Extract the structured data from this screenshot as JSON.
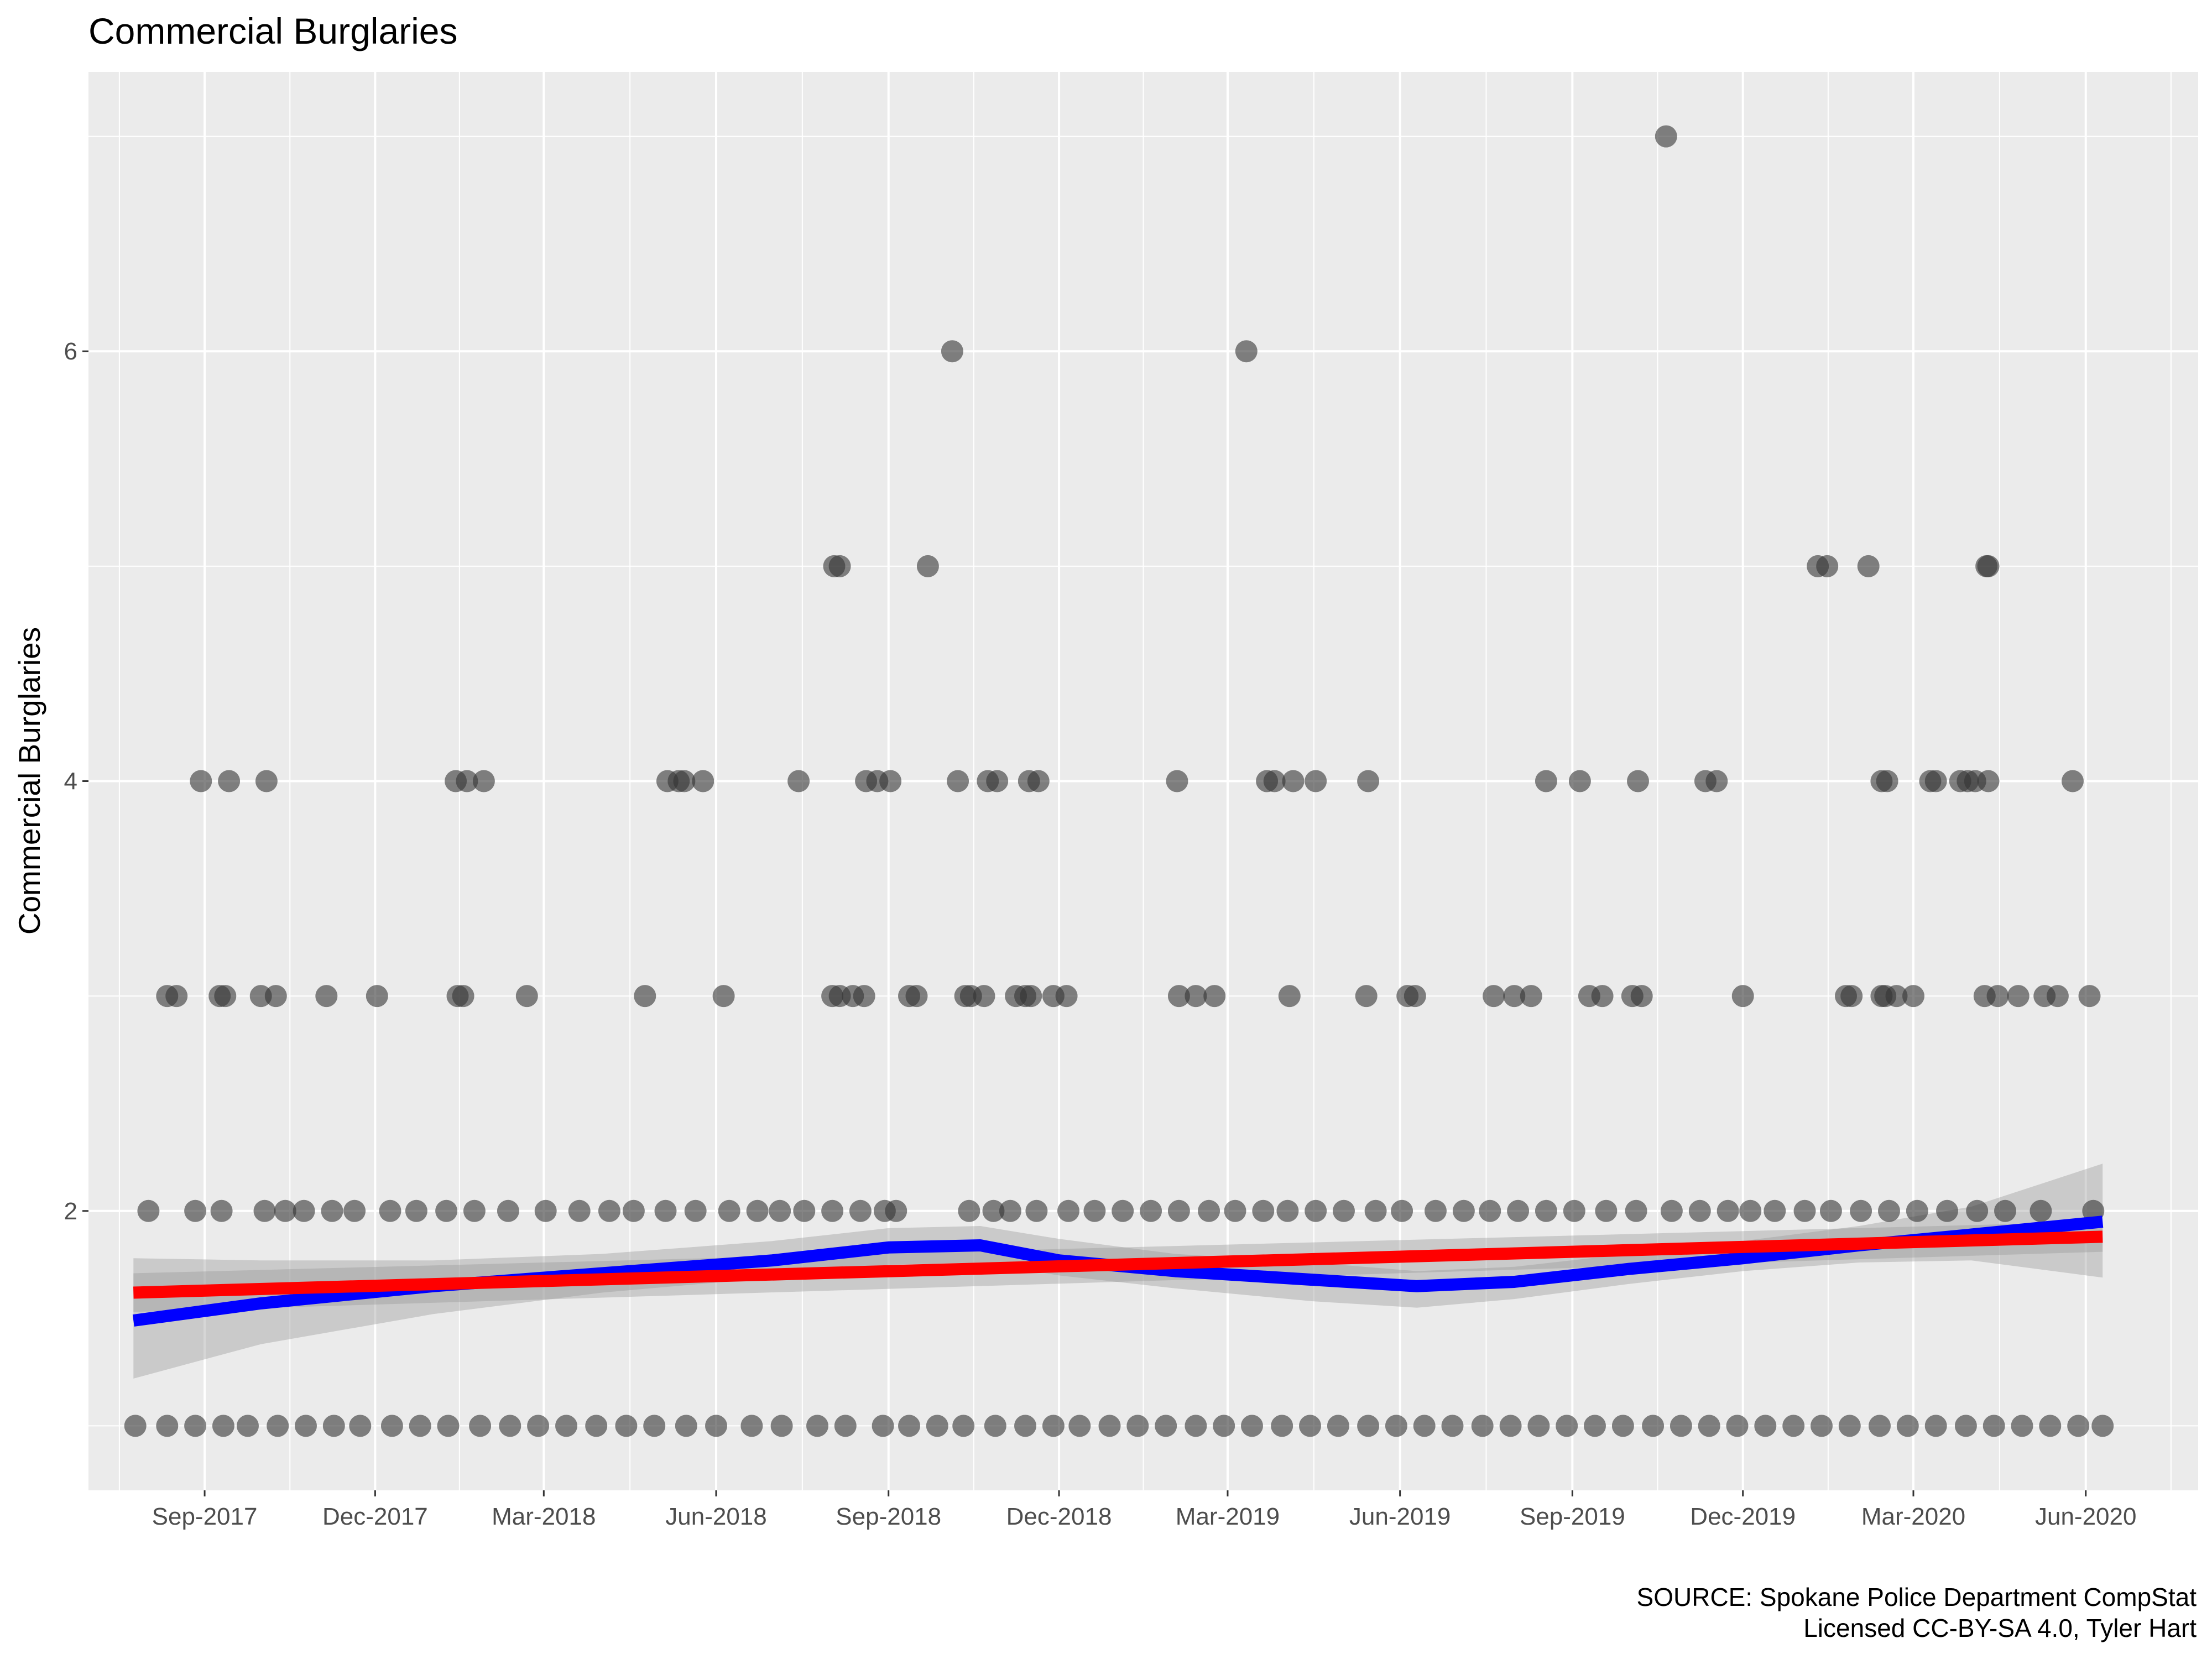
{
  "chart_data": {
    "type": "scatter",
    "title": "Commercial Burglaries",
    "ylabel": "Commercial Burglaries",
    "xlabel": "",
    "caption_lines": [
      "SOURCE: Spokane Police Department CompStat",
      "Licensed CC-BY-SA 4.0, Tyler Hart"
    ],
    "x_range": [
      "2017-07-01",
      "2020-07-31"
    ],
    "ylim": [
      0.7,
      7.3
    ],
    "y_ticks": [
      2,
      4,
      6
    ],
    "x_ticks": [
      {
        "date": "2017-09-01",
        "label": "Sep-2017"
      },
      {
        "date": "2017-12-01",
        "label": "Dec-2017"
      },
      {
        "date": "2018-03-01",
        "label": "Mar-2018"
      },
      {
        "date": "2018-06-01",
        "label": "Jun-2018"
      },
      {
        "date": "2018-09-01",
        "label": "Sep-2018"
      },
      {
        "date": "2018-12-01",
        "label": "Dec-2018"
      },
      {
        "date": "2019-03-01",
        "label": "Mar-2019"
      },
      {
        "date": "2019-06-01",
        "label": "Jun-2019"
      },
      {
        "date": "2019-09-01",
        "label": "Sep-2019"
      },
      {
        "date": "2019-12-01",
        "label": "Dec-2019"
      },
      {
        "date": "2020-03-01",
        "label": "Mar-2020"
      },
      {
        "date": "2020-06-01",
        "label": "Jun-2020"
      }
    ],
    "grid": true,
    "point_color": "#333333",
    "point_alpha": 0.6,
    "points": {
      "7": [
        "2019-10-21"
      ],
      "6": [
        "2018-10-05",
        "2019-03-11"
      ],
      "5": [
        "2018-08-03",
        "2018-08-06",
        "2018-09-22",
        "2020-01-10",
        "2020-01-15",
        "2020-02-06",
        "2020-04-09",
        "2020-04-10"
      ],
      "4": [
        "2017-08-30",
        "2017-09-14",
        "2017-10-04",
        "2018-01-13",
        "2018-01-19",
        "2018-01-28",
        "2018-05-06",
        "2018-05-12",
        "2018-05-15",
        "2018-05-25",
        "2018-07-15",
        "2018-08-20",
        "2018-08-26",
        "2018-09-02",
        "2018-10-08",
        "2018-10-24",
        "2018-10-29",
        "2018-11-15",
        "2018-11-20",
        "2019-02-02",
        "2019-03-22",
        "2019-03-26",
        "2019-04-05",
        "2019-04-17",
        "2019-05-15",
        "2019-08-18",
        "2019-09-05",
        "2019-10-06",
        "2019-11-11",
        "2019-11-17",
        "2020-02-13",
        "2020-02-16",
        "2020-03-10",
        "2020-03-13",
        "2020-03-26",
        "2020-03-30",
        "2020-04-03",
        "2020-04-10",
        "2020-05-25"
      ],
      "3": [
        "2017-08-12",
        "2017-08-17",
        "2017-09-09",
        "2017-09-12",
        "2017-10-01",
        "2017-10-09",
        "2017-11-05",
        "2017-12-02",
        "2018-01-14",
        "2018-01-17",
        "2018-02-20",
        "2018-04-24",
        "2018-06-05",
        "2018-08-02",
        "2018-08-06",
        "2018-08-13",
        "2018-08-19",
        "2018-09-12",
        "2018-09-16",
        "2018-10-12",
        "2018-10-15",
        "2018-10-22",
        "2018-11-08",
        "2018-11-13",
        "2018-11-16",
        "2018-11-28",
        "2018-12-05",
        "2019-02-03",
        "2019-02-12",
        "2019-02-22",
        "2019-04-03",
        "2019-05-14",
        "2019-06-05",
        "2019-06-09",
        "2019-07-21",
        "2019-08-01",
        "2019-08-10",
        "2019-09-10",
        "2019-09-17",
        "2019-10-03",
        "2019-10-08",
        "2019-12-01",
        "2020-01-25",
        "2020-01-28",
        "2020-02-13",
        "2020-02-15",
        "2020-02-21",
        "2020-03-01",
        "2020-04-08",
        "2020-04-15",
        "2020-04-26",
        "2020-05-10",
        "2020-05-17",
        "2020-06-03"
      ],
      "2": [
        "2017-08-02",
        "2017-08-27",
        "2017-09-10",
        "2017-10-03",
        "2017-10-14",
        "2017-10-24",
        "2017-11-08",
        "2017-11-20",
        "2017-12-09",
        "2017-12-23",
        "2018-01-08",
        "2018-01-23",
        "2018-02-10",
        "2018-03-02",
        "2018-03-20",
        "2018-04-05",
        "2018-04-18",
        "2018-05-05",
        "2018-05-21",
        "2018-06-08",
        "2018-06-23",
        "2018-07-05",
        "2018-07-18",
        "2018-08-02",
        "2018-08-17",
        "2018-08-30",
        "2018-09-05",
        "2018-10-14",
        "2018-10-27",
        "2018-11-05",
        "2018-11-19",
        "2018-12-06",
        "2018-12-20",
        "2019-01-04",
        "2019-01-19",
        "2019-02-03",
        "2019-02-19",
        "2019-03-05",
        "2019-03-20",
        "2019-04-02",
        "2019-04-17",
        "2019-05-02",
        "2019-05-19",
        "2019-06-02",
        "2019-06-20",
        "2019-07-05",
        "2019-07-19",
        "2019-08-03",
        "2019-08-18",
        "2019-09-02",
        "2019-09-19",
        "2019-10-05",
        "2019-10-24",
        "2019-11-08",
        "2019-11-23",
        "2019-12-05",
        "2019-12-18",
        "2020-01-03",
        "2020-01-17",
        "2020-02-02",
        "2020-02-17",
        "2020-03-03",
        "2020-03-19",
        "2020-04-04",
        "2020-04-19",
        "2020-05-08",
        "2020-06-05"
      ],
      "1": [
        "2017-07-26",
        "2017-08-12",
        "2017-08-27",
        "2017-09-11",
        "2017-09-24",
        "2017-10-10",
        "2017-10-25",
        "2017-11-09",
        "2017-11-23",
        "2017-12-10",
        "2017-12-25",
        "2018-01-09",
        "2018-01-26",
        "2018-02-11",
        "2018-02-26",
        "2018-03-13",
        "2018-03-29",
        "2018-04-14",
        "2018-04-29",
        "2018-05-16",
        "2018-06-01",
        "2018-06-20",
        "2018-07-06",
        "2018-07-25",
        "2018-08-09",
        "2018-08-29",
        "2018-09-12",
        "2018-09-27",
        "2018-10-11",
        "2018-10-28",
        "2018-11-13",
        "2018-11-28",
        "2018-12-12",
        "2018-12-28",
        "2019-01-12",
        "2019-01-27",
        "2019-02-12",
        "2019-02-27",
        "2019-03-14",
        "2019-03-30",
        "2019-04-14",
        "2019-04-29",
        "2019-05-15",
        "2019-05-30",
        "2019-06-14",
        "2019-06-29",
        "2019-07-15",
        "2019-07-30",
        "2019-08-14",
        "2019-08-29",
        "2019-09-13",
        "2019-09-28",
        "2019-10-14",
        "2019-10-29",
        "2019-11-13",
        "2019-11-28",
        "2019-12-13",
        "2019-12-28",
        "2020-01-12",
        "2020-01-27",
        "2020-02-12",
        "2020-02-27",
        "2020-03-13",
        "2020-03-29",
        "2020-04-13",
        "2020-04-28",
        "2020-05-13",
        "2020-05-28",
        "2020-06-10"
      ]
    },
    "series": [
      {
        "type": "loess",
        "color": "#0000ff",
        "x": [
          "2017-07-25",
          "2017-10-01",
          "2018-01-01",
          "2018-04-01",
          "2018-07-01",
          "2018-09-01",
          "2018-10-20",
          "2018-12-01",
          "2019-02-01",
          "2019-04-15",
          "2019-06-10",
          "2019-08-01",
          "2019-10-01",
          "2019-12-01",
          "2020-02-01",
          "2020-04-01",
          "2020-06-10"
        ],
        "y": [
          1.49,
          1.57,
          1.65,
          1.71,
          1.77,
          1.83,
          1.84,
          1.77,
          1.72,
          1.68,
          1.65,
          1.67,
          1.73,
          1.78,
          1.84,
          1.89,
          1.95
        ],
        "band_upper": [
          1.78,
          1.77,
          1.77,
          1.8,
          1.86,
          1.92,
          1.93,
          1.87,
          1.8,
          1.76,
          1.72,
          1.74,
          1.8,
          1.86,
          1.93,
          2.02,
          2.22
        ],
        "band_lower": [
          1.22,
          1.38,
          1.52,
          1.62,
          1.69,
          1.75,
          1.76,
          1.7,
          1.64,
          1.58,
          1.55,
          1.59,
          1.66,
          1.72,
          1.76,
          1.77,
          1.69
        ]
      },
      {
        "type": "linear",
        "color": "#ff0000",
        "x": [
          "2017-07-25",
          "2020-06-10"
        ],
        "y": [
          1.62,
          1.88
        ],
        "band_upper": [
          1.71,
          1.95
        ],
        "band_lower": [
          1.53,
          1.81
        ]
      }
    ]
  }
}
